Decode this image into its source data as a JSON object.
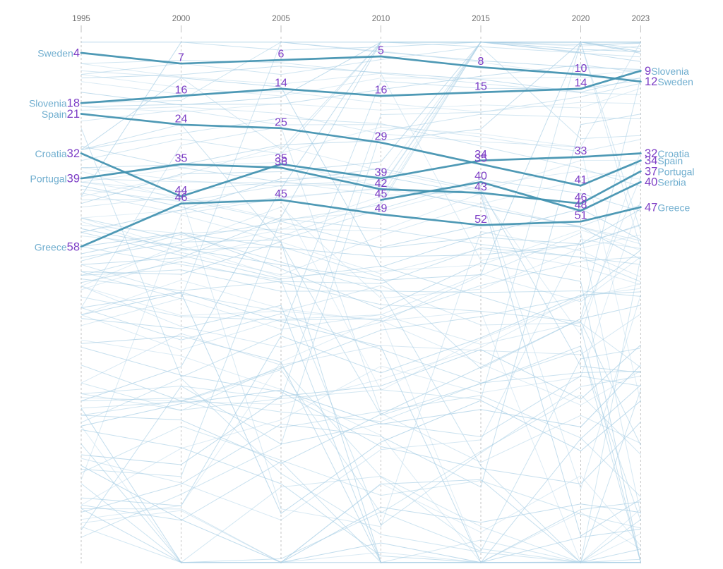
{
  "chart_data": {
    "type": "line",
    "variant": "bump-ranking",
    "title": "",
    "years": [
      1995,
      2000,
      2005,
      2010,
      2015,
      2020,
      2023
    ],
    "year_tick_labels": [
      "1995",
      "2000",
      "2005",
      "2010",
      "2015",
      "2020",
      "2023"
    ],
    "rank_axis": {
      "best_rank": 1,
      "worst_visible_rank": 146,
      "direction": "rank-1-at-top"
    },
    "grid": "dashed-vertical-per-year",
    "legend": "endpoint-inline-labels",
    "series": [
      {
        "name": "Sweden",
        "ranks": [
          4,
          7,
          6,
          5,
          8,
          10,
          12
        ]
      },
      {
        "name": "Slovenia",
        "ranks": [
          18,
          16,
          14,
          16,
          15,
          14,
          9
        ]
      },
      {
        "name": "Spain",
        "ranks": [
          21,
          24,
          25,
          29,
          35,
          41,
          34
        ]
      },
      {
        "name": "Croatia",
        "ranks": [
          32,
          44,
          35,
          39,
          34,
          33,
          32
        ]
      },
      {
        "name": "Portugal",
        "ranks": [
          39,
          35,
          36,
          42,
          43,
          46,
          37
        ]
      },
      {
        "name": "Serbia",
        "ranks": [
          null,
          null,
          null,
          45,
          40,
          48,
          40
        ]
      },
      {
        "name": "Greece",
        "ranks": [
          58,
          46,
          45,
          49,
          52,
          51,
          47
        ]
      }
    ],
    "left_endpoint_labels": [
      {
        "name": "Sweden",
        "rank": 4
      },
      {
        "name": "Slovenia",
        "rank": 18
      },
      {
        "name": "Spain",
        "rank": 21
      },
      {
        "name": "Croatia",
        "rank": 32
      },
      {
        "name": "Portugal",
        "rank": 39
      },
      {
        "name": "Greece",
        "rank": 58
      }
    ],
    "right_endpoint_labels": [
      {
        "rank": 9,
        "name": "Slovenia"
      },
      {
        "rank": 12,
        "name": "Sweden"
      },
      {
        "rank": 32,
        "name": "Croatia"
      },
      {
        "rank": 34,
        "name": "Spain"
      },
      {
        "rank": 37,
        "name": "Portugal"
      },
      {
        "rank": 40,
        "name": "Serbia"
      },
      {
        "rank": 47,
        "name": "Greece"
      }
    ]
  },
  "colors": {
    "highlight_line": "#4191AF",
    "rank_number": "#7D3EC6",
    "country_label": "#70AECF",
    "background_line": "#A9CFE5",
    "year_label": "#6E6E6E",
    "grid_dash": "#C6C6C6",
    "grid_tick": "#BDBDBD",
    "canvas": "#FFFFFF"
  },
  "background_lines": {
    "decorative": true,
    "series_count": 110,
    "seed": 20230
  }
}
